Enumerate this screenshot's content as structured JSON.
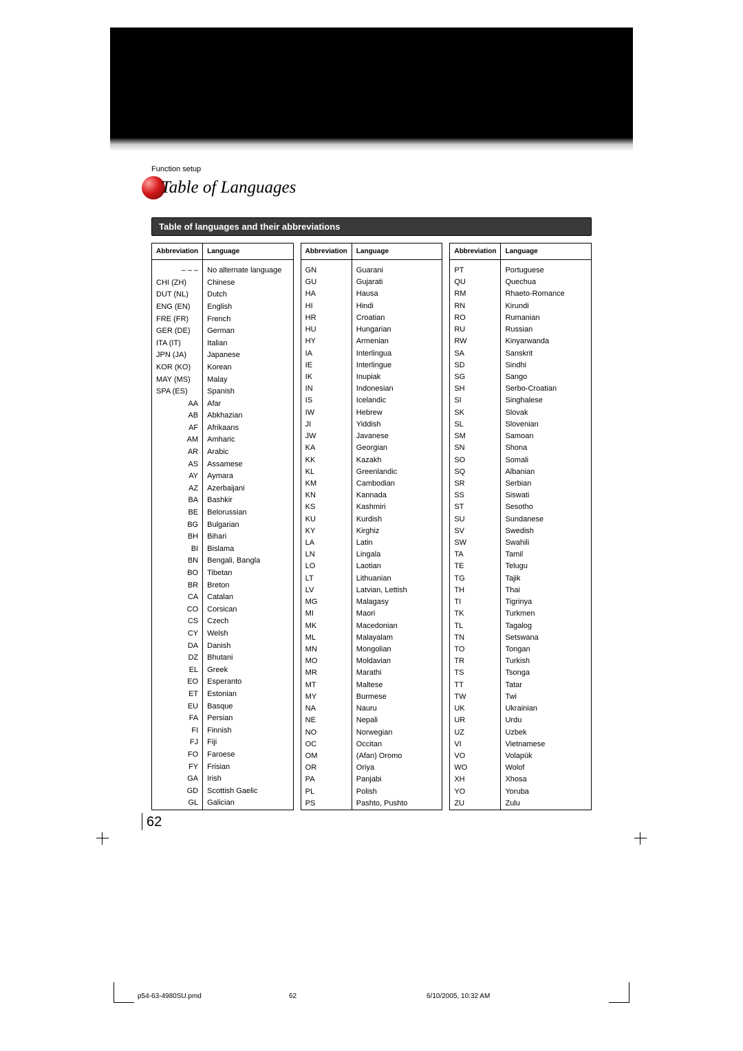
{
  "section_label": "Function setup",
  "page_title": "Table of Languages",
  "subheader": "Table of languages and their abbreviations",
  "columns": {
    "abbr": "Abbreviation",
    "lang": "Language"
  },
  "page_number": "62",
  "footer": {
    "file": "p54-63-4980SU.pmd",
    "num": "62",
    "date": "6/10/2005, 10:32 AM"
  },
  "table_style": {
    "font_size_pt": 11,
    "header_font_size_pt": 10,
    "border_color": "#000000",
    "header_bg": "#ffffff",
    "colors": {
      "text": "#000000",
      "band": "#000000",
      "subheader_bg": "#3a3a3a",
      "subheader_text": "#ffffff",
      "sphere_highlight": "#ff9a9a",
      "sphere_mid": "#d41a1a",
      "sphere_dark": "#7a0b0b"
    }
  },
  "col1": [
    {
      "a": "– – –",
      "l": "No alternate language",
      "align": "right"
    },
    {
      "a": "CHI (ZH)",
      "l": "Chinese"
    },
    {
      "a": "DUT (NL)",
      "l": "Dutch"
    },
    {
      "a": "ENG (EN)",
      "l": "English"
    },
    {
      "a": "FRE (FR)",
      "l": "French"
    },
    {
      "a": "GER (DE)",
      "l": "German"
    },
    {
      "a": "ITA (IT)",
      "l": "Italian"
    },
    {
      "a": "JPN (JA)",
      "l": "Japanese"
    },
    {
      "a": "KOR (KO)",
      "l": "Korean"
    },
    {
      "a": "MAY (MS)",
      "l": "Malay"
    },
    {
      "a": "SPA (ES)",
      "l": "Spanish"
    },
    {
      "a": "AA",
      "l": "Afar",
      "align": "right"
    },
    {
      "a": "AB",
      "l": "Abkhazian",
      "align": "right"
    },
    {
      "a": "AF",
      "l": "Afrikaans",
      "align": "right"
    },
    {
      "a": "AM",
      "l": "Amharic",
      "align": "right"
    },
    {
      "a": "AR",
      "l": "Arabic",
      "align": "right"
    },
    {
      "a": "AS",
      "l": "Assamese",
      "align": "right"
    },
    {
      "a": "AY",
      "l": "Aymara",
      "align": "right"
    },
    {
      "a": "AZ",
      "l": "Azerbaijani",
      "align": "right"
    },
    {
      "a": "BA",
      "l": "Bashkir",
      "align": "right"
    },
    {
      "a": "BE",
      "l": "Belorussian",
      "align": "right"
    },
    {
      "a": "BG",
      "l": "Bulgarian",
      "align": "right"
    },
    {
      "a": "BH",
      "l": "Bihari",
      "align": "right"
    },
    {
      "a": "BI",
      "l": "Bislama",
      "align": "right"
    },
    {
      "a": "BN",
      "l": "Bengali, Bangla",
      "align": "right"
    },
    {
      "a": "BO",
      "l": "Tibetan",
      "align": "right"
    },
    {
      "a": "BR",
      "l": "Breton",
      "align": "right"
    },
    {
      "a": "CA",
      "l": "Catalan",
      "align": "right"
    },
    {
      "a": "CO",
      "l": "Corsican",
      "align": "right"
    },
    {
      "a": "CS",
      "l": "Czech",
      "align": "right"
    },
    {
      "a": "CY",
      "l": "Welsh",
      "align": "right"
    },
    {
      "a": "DA",
      "l": "Danish",
      "align": "right"
    },
    {
      "a": "DZ",
      "l": "Bhutani",
      "align": "right"
    },
    {
      "a": "EL",
      "l": "Greek",
      "align": "right"
    },
    {
      "a": "EO",
      "l": "Esperanto",
      "align": "right"
    },
    {
      "a": "ET",
      "l": "Estonian",
      "align": "right"
    },
    {
      "a": "EU",
      "l": "Basque",
      "align": "right"
    },
    {
      "a": "FA",
      "l": "Persian",
      "align": "right"
    },
    {
      "a": "FI",
      "l": "Finnish",
      "align": "right"
    },
    {
      "a": "FJ",
      "l": "Fiji",
      "align": "right"
    },
    {
      "a": "FO",
      "l": "Faroese",
      "align": "right"
    },
    {
      "a": "FY",
      "l": "Frisian",
      "align": "right"
    },
    {
      "a": "GA",
      "l": "Irish",
      "align": "right"
    },
    {
      "a": "GD",
      "l": "Scottish Gaelic",
      "align": "right"
    },
    {
      "a": "GL",
      "l": "Galician",
      "align": "right"
    }
  ],
  "col2": [
    {
      "a": "GN",
      "l": "Guarani"
    },
    {
      "a": "GU",
      "l": "Gujarati"
    },
    {
      "a": "HA",
      "l": "Hausa"
    },
    {
      "a": "HI",
      "l": "Hindi"
    },
    {
      "a": "HR",
      "l": "Croatian"
    },
    {
      "a": "HU",
      "l": "Hungarian"
    },
    {
      "a": "HY",
      "l": "Armenian"
    },
    {
      "a": "IA",
      "l": "Interlingua"
    },
    {
      "a": "IE",
      "l": "Interlingue"
    },
    {
      "a": "IK",
      "l": "Inupiak"
    },
    {
      "a": "IN",
      "l": "Indonesian"
    },
    {
      "a": "IS",
      "l": "Icelandic"
    },
    {
      "a": "IW",
      "l": "Hebrew"
    },
    {
      "a": "JI",
      "l": "Yiddish"
    },
    {
      "a": "JW",
      "l": "Javanese"
    },
    {
      "a": "KA",
      "l": "Georgian"
    },
    {
      "a": "KK",
      "l": "Kazakh"
    },
    {
      "a": "KL",
      "l": "Greenlandic"
    },
    {
      "a": "KM",
      "l": "Cambodian"
    },
    {
      "a": "KN",
      "l": "Kannada"
    },
    {
      "a": "KS",
      "l": "Kashmiri"
    },
    {
      "a": "KU",
      "l": "Kurdish"
    },
    {
      "a": "KY",
      "l": "Kirghiz"
    },
    {
      "a": "LA",
      "l": "Latin"
    },
    {
      "a": "LN",
      "l": "Lingala"
    },
    {
      "a": "LO",
      "l": "Laotian"
    },
    {
      "a": "LT",
      "l": "Lithuanian"
    },
    {
      "a": "LV",
      "l": "Latvian, Lettish"
    },
    {
      "a": "MG",
      "l": "Malagasy"
    },
    {
      "a": "MI",
      "l": "Maori"
    },
    {
      "a": "MK",
      "l": "Macedonian"
    },
    {
      "a": "ML",
      "l": "Malayalam"
    },
    {
      "a": "MN",
      "l": "Mongolian"
    },
    {
      "a": "MO",
      "l": "Moldavian"
    },
    {
      "a": "MR",
      "l": "Marathi"
    },
    {
      "a": "MT",
      "l": "Maltese"
    },
    {
      "a": "MY",
      "l": "Burmese"
    },
    {
      "a": "NA",
      "l": "Nauru"
    },
    {
      "a": "NE",
      "l": "Nepali"
    },
    {
      "a": "NO",
      "l": "Norwegian"
    },
    {
      "a": "OC",
      "l": "Occitan"
    },
    {
      "a": "OM",
      "l": "(Afan) Oromo"
    },
    {
      "a": "OR",
      "l": "Oriya"
    },
    {
      "a": "PA",
      "l": "Panjabi"
    },
    {
      "a": "PL",
      "l": "Polish"
    },
    {
      "a": "PS",
      "l": "Pashto, Pushto"
    }
  ],
  "col3": [
    {
      "a": "PT",
      "l": "Portuguese"
    },
    {
      "a": "QU",
      "l": "Quechua"
    },
    {
      "a": "RM",
      "l": "Rhaeto-Romance"
    },
    {
      "a": "RN",
      "l": "Kirundi"
    },
    {
      "a": "RO",
      "l": "Rumanian"
    },
    {
      "a": "RU",
      "l": "Russian"
    },
    {
      "a": "RW",
      "l": "Kinyarwanda"
    },
    {
      "a": "SA",
      "l": "Sanskrit"
    },
    {
      "a": "SD",
      "l": "Sindhi"
    },
    {
      "a": "SG",
      "l": "Sango"
    },
    {
      "a": "SH",
      "l": "Serbo-Croatian"
    },
    {
      "a": "SI",
      "l": "Singhalese"
    },
    {
      "a": "SK",
      "l": "Slovak"
    },
    {
      "a": "SL",
      "l": "Slovenian"
    },
    {
      "a": "SM",
      "l": "Samoan"
    },
    {
      "a": "SN",
      "l": "Shona"
    },
    {
      "a": "SO",
      "l": "Somali"
    },
    {
      "a": "SQ",
      "l": "Albanian"
    },
    {
      "a": "SR",
      "l": "Serbian"
    },
    {
      "a": "SS",
      "l": "Siswati"
    },
    {
      "a": "ST",
      "l": "Sesotho"
    },
    {
      "a": "SU",
      "l": "Sundanese"
    },
    {
      "a": "SV",
      "l": "Swedish"
    },
    {
      "a": "SW",
      "l": "Swahili"
    },
    {
      "a": "TA",
      "l": "Tamil"
    },
    {
      "a": "TE",
      "l": "Telugu"
    },
    {
      "a": "TG",
      "l": "Tajik"
    },
    {
      "a": "TH",
      "l": "Thai"
    },
    {
      "a": "TI",
      "l": "Tigrinya"
    },
    {
      "a": "TK",
      "l": "Turkmen"
    },
    {
      "a": "TL",
      "l": "Tagalog"
    },
    {
      "a": "TN",
      "l": "Setswana"
    },
    {
      "a": "TO",
      "l": "Tongan"
    },
    {
      "a": "TR",
      "l": "Turkish"
    },
    {
      "a": "TS",
      "l": "Tsonga"
    },
    {
      "a": "TT",
      "l": "Tatar"
    },
    {
      "a": "TW",
      "l": "Twi"
    },
    {
      "a": "UK",
      "l": "Ukrainian"
    },
    {
      "a": "UR",
      "l": "Urdu"
    },
    {
      "a": "UZ",
      "l": "Uzbek"
    },
    {
      "a": "VI",
      "l": "Vietnamese"
    },
    {
      "a": "VO",
      "l": "Volapük"
    },
    {
      "a": "WO",
      "l": "Wolof"
    },
    {
      "a": "XH",
      "l": "Xhosa"
    },
    {
      "a": "YO",
      "l": "Yoruba"
    },
    {
      "a": "ZU",
      "l": "Zulu"
    }
  ]
}
